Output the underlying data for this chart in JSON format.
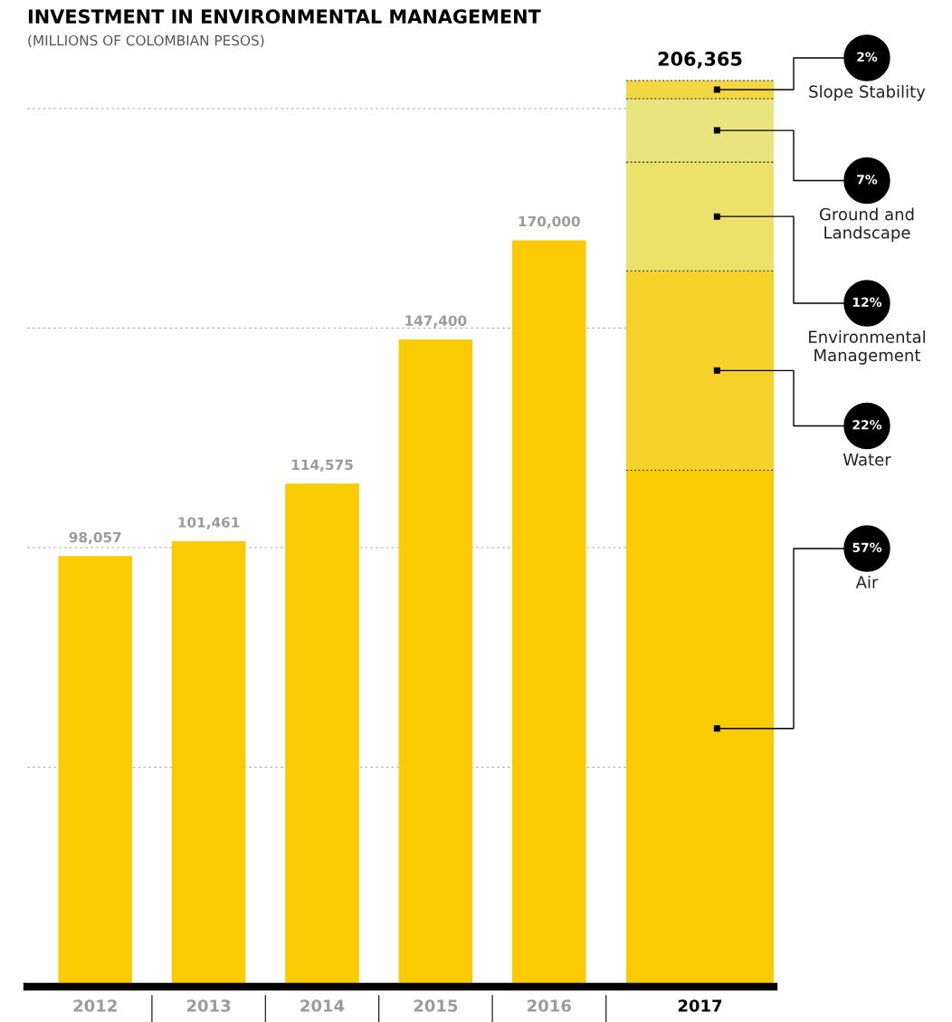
{
  "chart_data": {
    "type": "bar",
    "title": "INVESTMENT IN ENVIRONMENTAL MANAGEMENT",
    "subtitle": "(MILLIONS OF COLOMBIAN PESOS)",
    "categories": [
      "2012",
      "2013",
      "2014",
      "2015",
      "2016",
      "2017"
    ],
    "stacked": true,
    "series": [
      {
        "color": "#facb00",
        "values": [
          98057,
          101461,
          114575,
          147400,
          170000,
          null
        ],
        "value_labels": [
          "98,057",
          "101,461",
          "114,575",
          "147,400",
          "170,000",
          null
        ]
      },
      {
        "name": "Air",
        "color": "#facb00",
        "values": [
          null,
          null,
          null,
          null,
          null,
          117628
        ]
      },
      {
        "name": "Water",
        "color": "#f5d22a",
        "values": [
          null,
          null,
          null,
          null,
          null,
          45400
        ]
      },
      {
        "name": "Environmental Management",
        "color": "#ebe26b",
        "values": [
          null,
          null,
          null,
          null,
          null,
          24764
        ]
      },
      {
        "name": "Ground and Landscape",
        "color": "#e8e47e",
        "values": [
          null,
          null,
          null,
          null,
          null,
          14446
        ]
      },
      {
        "name": "Slope Stability",
        "color": "#f2d642",
        "values": [
          null,
          null,
          null,
          null,
          null,
          4127
        ]
      }
    ],
    "annotations": [
      "57%",
      "22%",
      "12%",
      "7%",
      "2%"
    ],
    "totals": [
      null,
      null,
      null,
      null,
      null,
      "206,365"
    ],
    "yticks": [
      {
        "value": 0,
        "label": null
      },
      {
        "value": 50000,
        "label": null
      },
      {
        "value": 100000,
        "label": null
      },
      {
        "value": 150000,
        "label": null
      },
      {
        "value": 200000,
        "label": null
      }
    ],
    "tick_labels": "x",
    "grid": "y",
    "legend": false
  }
}
